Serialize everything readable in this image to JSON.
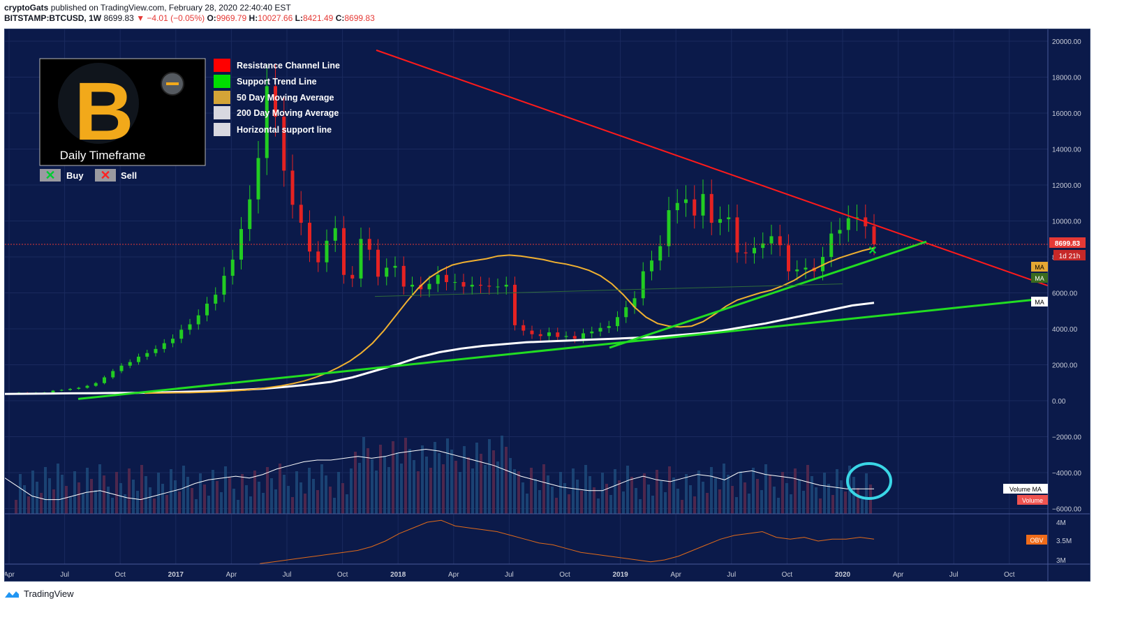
{
  "header": {
    "line1_user": "cryptoGats",
    "line1_text": "published on TradingView.com, February 28, 2020 22:40:40 EST",
    "symbol": "BITSTAMP:BTCUSD, 1W",
    "price": "8699.83",
    "change": "▼ −4.01 (−0.05%)",
    "o_label": "O:",
    "o": "9969.79",
    "h_label": "H:",
    "h": "10027.66",
    "l_label": "L:",
    "l": "8421.49",
    "c_label": "C:",
    "c": "8699.83"
  },
  "logo": {
    "caption": "Daily Timeframe",
    "symbol": "B"
  },
  "legend": [
    {
      "label": "Resistance Channel Line",
      "color": "#ff0000"
    },
    {
      "label": "Support Trend Line",
      "color": "#00dd00"
    },
    {
      "label": "50 Day Moving Average",
      "color": "#d4a437"
    },
    {
      "label": "200 Day Moving Average",
      "color": "#d8d8e0"
    },
    {
      "label": "Horizontal support line",
      "color": "#d8d8e0"
    }
  ],
  "signals": {
    "buy": "Buy",
    "sell": "Sell"
  },
  "badges": {
    "price": "8699.83",
    "countdown": "1d 21h",
    "ma": "MA",
    "volume_ma": "Volume MA",
    "volume": "Volume",
    "obv": "OBV"
  },
  "footer": {
    "brand": "TradingView"
  },
  "chart_data": {
    "type": "candlestick",
    "interval": "1W",
    "y_ticks": [
      "20000.00",
      "18000.00",
      "16000.00",
      "14000.00",
      "12000.00",
      "10000.00",
      "8000.00",
      "6000.00",
      "4000.00",
      "2000.00",
      "0.00",
      "−2000.00",
      "−4000.00",
      "−6000.00"
    ],
    "ylim": [
      -6500,
      20000
    ],
    "obv_ticks": [
      "4M",
      "3.5M",
      "3M"
    ],
    "x_ticks": [
      "Apr",
      "Jul",
      "Oct",
      "2017",
      "Apr",
      "Jul",
      "Oct",
      "2018",
      "Apr",
      "Jul",
      "Oct",
      "2019",
      "Apr",
      "Jul",
      "Oct",
      "2020",
      "Apr",
      "Jul",
      "Oct"
    ],
    "close_series": [
      450,
      440,
      450,
      460,
      560,
      600,
      660,
      720,
      830,
      980,
      1300,
      1650,
      1950,
      2150,
      2450,
      2650,
      2880,
      3200,
      3450,
      3950,
      4250,
      4750,
      5400,
      5900,
      6950,
      7850,
      9550,
      11200,
      13500,
      17500,
      15800,
      12800,
      10900,
      9900,
      8300,
      7700,
      8900,
      9600,
      7000,
      6800,
      9000,
      8400,
      6900,
      7400,
      7500,
      6350,
      6450,
      6200,
      6500,
      7000,
      6600,
      6600,
      6350,
      6450,
      6400,
      6350,
      6350,
      6450,
      4200,
      3900,
      3700,
      3600,
      3800,
      3550,
      3600,
      3450,
      3750,
      3850,
      4050,
      4150,
      4650,
      5200,
      5700,
      7200,
      7800,
      8600,
      10600,
      11000,
      11200,
      10300,
      11500,
      9900,
      10100,
      10200,
      8250,
      8200,
      8500,
      8750,
      9150,
      8650,
      7200,
      7300,
      7400,
      7200,
      8000,
      9300,
      9500,
      10150,
      10200,
      9700,
      8700
    ],
    "ma50_series": [
      420,
      430,
      440,
      445,
      450,
      470,
      490,
      520,
      560,
      600,
      660,
      740,
      830,
      950,
      1100,
      1300,
      1550,
      1850,
      2200,
      2650,
      3200,
      3900,
      4700,
      5500,
      6250,
      6850,
      7250,
      7550,
      7700,
      7800,
      7900,
      8050,
      8100,
      8050,
      7950,
      7850,
      7700,
      7600,
      7450,
      7250,
      6950,
      6500,
      5900,
      5200,
      4650,
      4300,
      4150,
      4100,
      4150,
      4400,
      4800,
      5250,
      5600,
      5800,
      6000,
      6150,
      6400,
      6700,
      7100,
      7400,
      7700,
      7950,
      8150,
      8350,
      8500
    ],
    "ma200_series": [
      380,
      390,
      400,
      410,
      420,
      430,
      440,
      460,
      490,
      520,
      560,
      610,
      680,
      780,
      900,
      1050,
      1300,
      1650,
      2000,
      2400,
      2700,
      2900,
      3050,
      3150,
      3250,
      3300,
      3350,
      3400,
      3450,
      3500,
      3550,
      3650,
      3750,
      3900,
      4100,
      4300,
      4550,
      4800,
      5050,
      5300,
      5450
    ],
    "volume_ma_series": [
      -4300,
      -4800,
      -5300,
      -5500,
      -5500,
      -5300,
      -5100,
      -5000,
      -5200,
      -5400,
      -5500,
      -5300,
      -5100,
      -4900,
      -4600,
      -4400,
      -4300,
      -4200,
      -4300,
      -4100,
      -3800,
      -3600,
      -3400,
      -3300,
      -3300,
      -3200,
      -3100,
      -3200,
      -3100,
      -2900,
      -2800,
      -2700,
      -2800,
      -3000,
      -3200,
      -3400,
      -3600,
      -3900,
      -4200,
      -4400,
      -4600,
      -4800,
      -4900,
      -5000,
      -5000,
      -4700,
      -4400,
      -4200,
      -4400,
      -4500,
      -4300,
      -4100,
      -4200,
      -4400,
      -4000,
      -3900,
      -4100,
      -4200,
      -4300,
      -4500,
      -4700,
      -4800,
      -4900,
      -4900,
      -4900
    ],
    "obv_series": [
      2.9,
      2.95,
      3.0,
      3.05,
      3.1,
      3.15,
      3.2,
      3.25,
      3.35,
      3.5,
      3.7,
      3.85,
      4.0,
      4.05,
      3.9,
      3.85,
      3.8,
      3.75,
      3.65,
      3.55,
      3.45,
      3.4,
      3.3,
      3.2,
      3.15,
      3.1,
      3.05,
      3.0,
      2.95,
      3.0,
      3.1,
      3.25,
      3.4,
      3.55,
      3.65,
      3.7,
      3.75,
      3.6,
      3.55,
      3.6,
      3.5,
      3.55,
      3.55,
      3.6,
      3.55
    ]
  }
}
